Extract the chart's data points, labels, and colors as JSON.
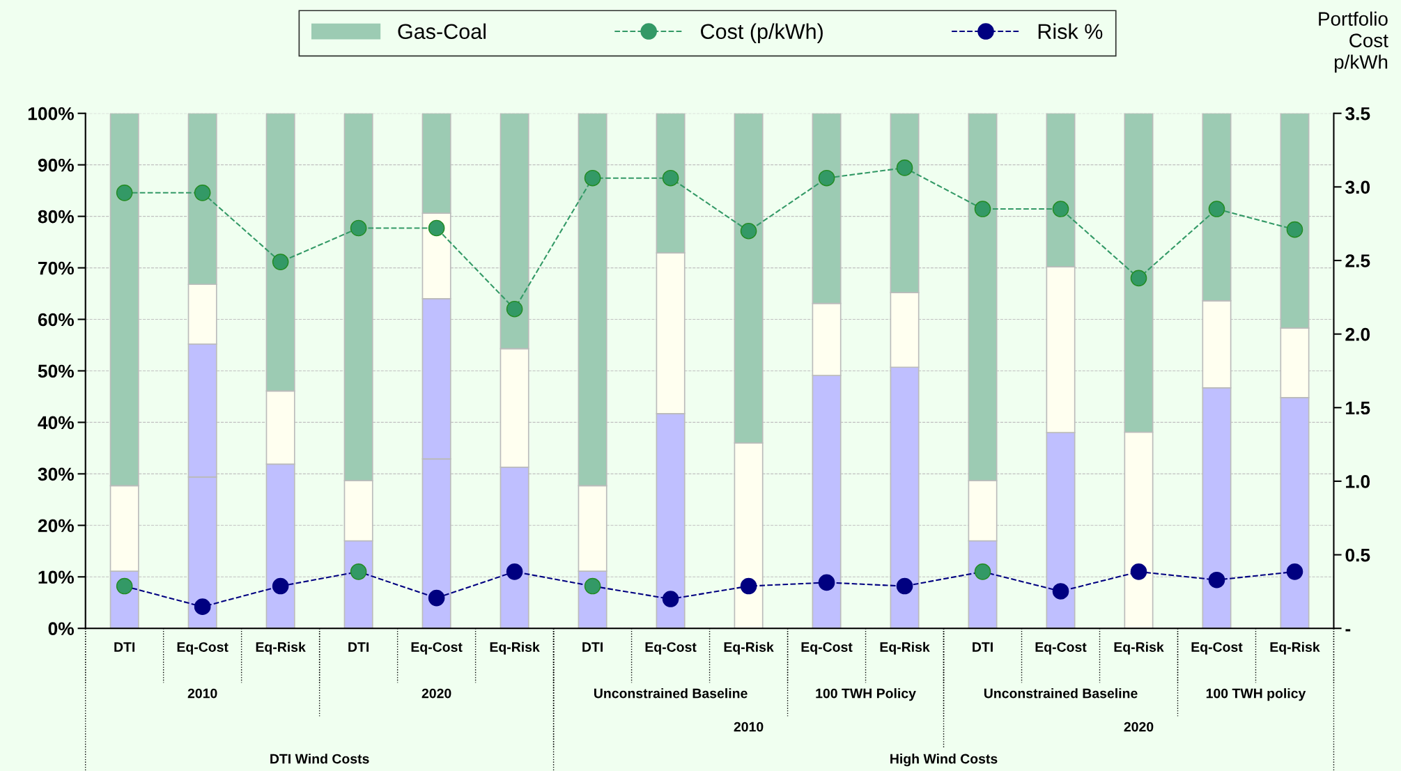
{
  "chart_data": {
    "type": "bar",
    "stacked": true,
    "categories": [
      "DTI",
      "Eq-Cost",
      "Eq-Risk",
      "DTI",
      "Eq-Cost",
      "Eq-Risk",
      "DTI",
      "Eq-Cost",
      "Eq-Risk",
      "Eq-Cost",
      "Eq-Risk",
      "DTI",
      "Eq-Cost",
      "Eq-Risk",
      "Eq-Cost",
      "Eq-Risk"
    ],
    "annotations": [
      "2010",
      "2020",
      "Unconstrained Baseline",
      "100 TWH Policy",
      "Unconstrained Baseline",
      "100 TWH policy",
      "2010",
      "2020",
      "DTI Wind Costs",
      "High Wind Costs"
    ],
    "y2label": "Portfolio\nCost\np/kWh",
    "series": [
      {
        "color": "#bfbfff",
        "values": [
          11.1,
          29.4,
          31.9,
          17.0,
          32.9,
          31.3,
          11.1,
          41.7,
          null,
          49.1,
          50.7,
          17.0,
          38.0,
          null,
          46.7,
          44.8
        ]
      },
      {
        "color": "#bfbfff",
        "values": [
          null,
          25.8,
          null,
          null,
          31.1,
          null,
          null,
          null,
          null,
          null,
          null,
          null,
          null,
          null,
          null,
          null
        ]
      },
      {
        "color": "#fffff0",
        "values": [
          16.6,
          11.6,
          14.2,
          11.7,
          16.6,
          23.0,
          16.6,
          31.2,
          36.0,
          14.0,
          14.5,
          11.7,
          32.2,
          38.1,
          16.9,
          13.5
        ]
      },
      {
        "name": "Gas-Coal",
        "color": "#9ccbb3",
        "values": [
          72.3,
          33.2,
          53.9,
          71.3,
          19.4,
          45.7,
          72.3,
          27.1,
          64.0,
          36.9,
          34.8,
          71.3,
          29.8,
          61.9,
          36.4,
          41.7
        ]
      },
      {
        "type": "line",
        "name": "Cost (p/kWh)",
        "color": "#339966",
        "axis": "y2",
        "marker": "circle",
        "line_style": "dashed",
        "values": [
          2.96,
          2.96,
          2.49,
          2.72,
          2.72,
          2.17,
          3.06,
          3.06,
          2.7,
          3.06,
          3.13,
          2.85,
          2.85,
          2.38,
          2.85,
          2.71
        ]
      },
      {
        "type": "line",
        "name": "Risk %",
        "color": "#000080",
        "marker": "circle",
        "line_style": "dashed",
        "colors": [
          "#339966",
          "#000080",
          "#000080",
          "#339966",
          "#000080",
          "#000080",
          "#339966",
          "#000080",
          "#000080",
          "#000080",
          "#000080",
          "#339966",
          "#000080",
          "#000080",
          "#000080",
          "#000080"
        ],
        "values": [
          8.2,
          4.2,
          8.2,
          11.0,
          5.9,
          11.0,
          8.2,
          5.7,
          8.2,
          8.9,
          8.2,
          11.0,
          7.2,
          11.0,
          9.4,
          11.0
        ]
      }
    ],
    "ylim": [
      0,
      100
    ],
    "yticks": [
      {
        "value": 0,
        "label": "0%"
      },
      {
        "value": 10,
        "label": "10%"
      },
      {
        "value": 20,
        "label": "20%"
      },
      {
        "value": 30,
        "label": "30%"
      },
      {
        "value": 40,
        "label": "40%"
      },
      {
        "value": 50,
        "label": "50%"
      },
      {
        "value": 60,
        "label": "60%"
      },
      {
        "value": 70,
        "label": "70%"
      },
      {
        "value": 80,
        "label": "80%"
      },
      {
        "value": 90,
        "label": "90%"
      },
      {
        "value": 100,
        "label": "100%"
      }
    ],
    "y2lim": [
      0,
      3.5
    ],
    "y2ticks": [
      {
        "value": 0,
        "label": "-"
      },
      {
        "value": 0.5,
        "label": "0.5"
      },
      {
        "value": 1.0,
        "label": "1.0"
      },
      {
        "value": 1.5,
        "label": "1.5"
      },
      {
        "value": 2.0,
        "label": "2.0"
      },
      {
        "value": 2.5,
        "label": "2.5"
      },
      {
        "value": 3.0,
        "label": "3.0"
      },
      {
        "value": 3.5,
        "label": "3.5"
      }
    ],
    "grid": "y",
    "legend": "top"
  }
}
